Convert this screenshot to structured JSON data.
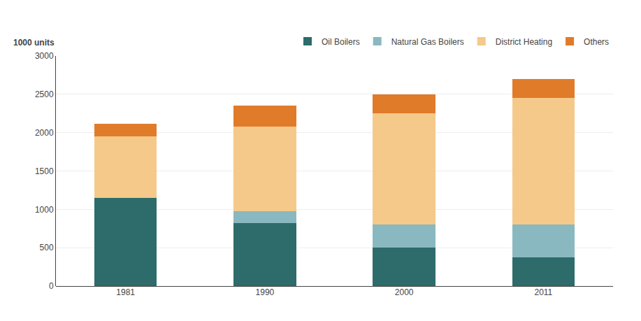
{
  "chart_data": {
    "type": "bar",
    "stacked": true,
    "ylabel": "1000 units",
    "categories": [
      "1981",
      "1990",
      "2000",
      "2011"
    ],
    "series": [
      {
        "name": "Oil Boilers",
        "color": "#2e6b6b",
        "values": [
          1150,
          825,
          500,
          375
        ]
      },
      {
        "name": "Natural Gas Boilers",
        "color": "#8ab8c0",
        "values": [
          0,
          150,
          300,
          425
        ]
      },
      {
        "name": "District Heating",
        "color": "#f5c98a",
        "values": [
          800,
          1100,
          1450,
          1650
        ]
      },
      {
        "name": "Others",
        "color": "#e07b2a",
        "values": [
          170,
          275,
          250,
          250
        ]
      }
    ],
    "ylim": [
      0,
      3000
    ],
    "yticks": [
      0,
      500,
      1000,
      1500,
      2000,
      2500,
      3000
    ],
    "grid": true,
    "legend": "top"
  }
}
